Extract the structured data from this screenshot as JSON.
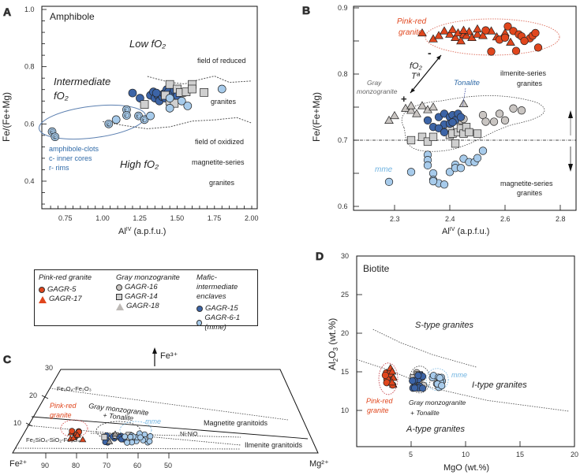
{
  "figure": {
    "colors": {
      "pink_red": "#e0461d",
      "gray": "#c9c5c2",
      "gray_square": "#cfcfcf",
      "dark_blue": "#3c64a6",
      "light_blue": "#a7cbeb",
      "clot_label": "#2f6aa8",
      "mme_label": "#6fb3e0",
      "pink_label": "#e0461d"
    }
  },
  "legend": {
    "groups": [
      {
        "title": "Pink-red granite",
        "items": [
          {
            "label": "GAGR-5",
            "symbol": "circle",
            "color": "#e0461d"
          },
          {
            "label": "GAGR-17",
            "symbol": "triangle",
            "color": "#e0461d"
          }
        ]
      },
      {
        "title": "Gray monzogranite",
        "items": [
          {
            "label": "GAGR-16",
            "symbol": "circle",
            "color": "#c9c5c2"
          },
          {
            "label": "GAGR-14",
            "symbol": "square",
            "color": "#cfcfcf"
          },
          {
            "label": "GAGR-18",
            "symbol": "triangle",
            "color": "#c9c5c2"
          }
        ]
      },
      {
        "title": "Mafic-intermediate",
        "title2": "enclaves",
        "items": [
          {
            "label": "GAGR-15",
            "symbol": "circle",
            "color": "#3c64a6"
          },
          {
            "label": "GAGR-6-1 (mme)",
            "symbol": "circle",
            "color": "#a7cbeb"
          }
        ]
      }
    ]
  },
  "chart_data": [
    {
      "panel": "A",
      "type": "scatter",
      "title": "Amphibole",
      "xlabel": "Alᴵⱽ (a.p.f.u.)",
      "xlabel_base": "Al",
      "xlabel_sup": "IV",
      "xlabel_rest": " (a.p.f.u.)",
      "ylabel": "Fe/(Fe+Mg)",
      "xlim": [
        0.59,
        2.03
      ],
      "ylim": [
        0.3,
        1.01
      ],
      "xticks": [
        0.75,
        1.0,
        1.25,
        1.5,
        1.75,
        2.0
      ],
      "xtick_labels": [
        "0.75",
        "1.00",
        "1.25",
        "1.50",
        "1.75",
        "2.00"
      ],
      "yticks": [
        1.0,
        0.8,
        0.6,
        0.4
      ],
      "ytick_labels": [
        "1.0",
        "0.8",
        "0.6",
        "0.4"
      ],
      "annotations": {
        "low": "Low fO₂",
        "intermediate_1": "Intermediate",
        "intermediate_2": "fO₂",
        "high": "High fO₂",
        "reduced_1": "field of reduced",
        "reduced_2": "granites",
        "oxidized_1": "field of oxidized",
        "oxidized_2": "magnetite-series",
        "oxidized_3": "granites",
        "clots_1": "amphibole-clots",
        "clots_2": "c- inner cores",
        "clots_3": "r- rims"
      },
      "boundary_upper": [
        [
          1.3,
          0.766
        ],
        [
          1.45,
          0.745
        ],
        [
          1.55,
          0.74
        ],
        [
          1.65,
          0.755
        ],
        [
          1.75,
          0.767
        ],
        [
          1.85,
          0.745
        ],
        [
          2.0,
          0.75
        ]
      ],
      "boundary_lower": [
        [
          1.0,
          0.608
        ],
        [
          1.15,
          0.594
        ],
        [
          1.3,
          0.583
        ],
        [
          1.45,
          0.59
        ],
        [
          1.6,
          0.61
        ],
        [
          1.75,
          0.614
        ],
        [
          1.9,
          0.622
        ],
        [
          2.0,
          0.603
        ]
      ],
      "series": [
        {
          "name": "GAGR-15",
          "marker": "circle",
          "color": "#3c64a6",
          "points": [
            [
              1.2,
              0.708
            ],
            [
              1.25,
              0.69
            ],
            [
              1.32,
              0.7
            ],
            [
              1.34,
              0.712
            ],
            [
              1.35,
              0.69
            ],
            [
              1.37,
              0.7
            ],
            [
              1.38,
              0.68
            ],
            [
              1.4,
              0.695
            ],
            [
              1.41,
              0.706
            ],
            [
              1.43,
              0.72
            ],
            [
              1.44,
              0.712
            ],
            [
              1.46,
              0.702
            ],
            [
              1.48,
              0.718
            ],
            [
              1.5,
              0.698
            ],
            [
              1.55,
              0.71
            ],
            [
              1.36,
              0.708
            ],
            [
              1.42,
              0.69
            ]
          ]
        },
        {
          "name": "GAGR-14",
          "marker": "square",
          "color": "#cfcfcf",
          "points": [
            [
              1.28,
              0.668
            ],
            [
              1.45,
              0.738
            ],
            [
              1.5,
              0.722
            ],
            [
              1.52,
              0.71
            ],
            [
              1.56,
              0.712
            ],
            [
              1.6,
              0.738
            ],
            [
              1.6,
              0.722
            ],
            [
              1.68,
              0.71
            ],
            [
              1.45,
              0.68
            ],
            [
              1.48,
              0.672
            ],
            [
              1.42,
              0.7
            ]
          ]
        },
        {
          "name": "GAGR-6-1 (mme)",
          "marker": "circle",
          "color": "#a7cbeb",
          "points": [
            [
              1.45,
              0.655
            ],
            [
              1.53,
              0.68
            ],
            [
              1.57,
              0.663
            ],
            [
              1.8,
              0.722
            ],
            [
              1.45,
              0.69
            ]
          ]
        },
        {
          "name": "amphibole-clots",
          "marker": "circle",
          "color": "#a7cbeb",
          "points": [
            {
              "x": 0.66,
              "y": 0.573,
              "tag": "c"
            },
            {
              "x": 0.68,
              "y": 0.555,
              "tag": "c"
            },
            {
              "x": 1.04,
              "y": 0.6,
              "tag": "c"
            },
            {
              "x": 1.09,
              "y": 0.615,
              "tag": ""
            },
            {
              "x": 1.16,
              "y": 0.65,
              "tag": "r"
            },
            {
              "x": 1.16,
              "y": 0.63,
              "tag": "r"
            },
            {
              "x": 1.24,
              "y": 0.628,
              "tag": "r"
            },
            {
              "x": 1.28,
              "y": 0.615,
              "tag": "r"
            },
            {
              "x": 1.32,
              "y": 0.628,
              "tag": ""
            }
          ]
        }
      ]
    },
    {
      "panel": "B",
      "type": "scatter",
      "xlabel_base": "Al",
      "xlabel_sup": "IV",
      "xlabel_rest": " (a.p.f.u.)",
      "ylabel": "Fe/(Fe+Mg)",
      "ylim": [
        0.6,
        0.9
      ],
      "xticks_labels": [
        "2.3",
        "2.4",
        "2.6",
        "2.8"
      ],
      "yticks": [
        0.9,
        0.8,
        0.7,
        0.6
      ],
      "ytick_labels": [
        "0.9",
        "0.8",
        "0.7",
        "0.6"
      ],
      "threshold_y": 0.7,
      "annotations": {
        "pink_1": "Pink-red",
        "pink_2": "granite",
        "gray_1": "Gray",
        "gray_2": "monzogranite",
        "tonalite": "Tonalite",
        "mme": "mme",
        "fo2": "fO₂",
        "temp": "Tª",
        "minus": "-",
        "plus": "+",
        "ilmenite_1": "ilmenite-series",
        "ilmenite_2": "granites",
        "magnetite_1": "magnetite-series",
        "magnetite_2": "granites"
      },
      "series": [
        {
          "name": "GAGR-17",
          "marker": "triangle",
          "color": "#e0461d",
          "points": [
            [
              2.35,
              0.862
            ],
            [
              2.37,
              0.853
            ],
            [
              2.38,
              0.858
            ],
            [
              2.39,
              0.865
            ],
            [
              2.4,
              0.86
            ],
            [
              2.41,
              0.867
            ],
            [
              2.42,
              0.855
            ],
            [
              2.43,
              0.862
            ],
            [
              2.44,
              0.85
            ],
            [
              2.45,
              0.86
            ],
            [
              2.46,
              0.858
            ],
            [
              2.47,
              0.864
            ],
            [
              2.48,
              0.855
            ],
            [
              2.5,
              0.86
            ],
            [
              2.52,
              0.858
            ],
            [
              2.55,
              0.865
            ],
            [
              2.57,
              0.856
            ],
            [
              2.6,
              0.862
            ],
            [
              2.62,
              0.848
            ],
            [
              2.45,
              0.866
            ],
            [
              2.5,
              0.868
            ]
          ]
        },
        {
          "name": "GAGR-5",
          "marker": "circle",
          "color": "#e0461d",
          "points": [
            [
              2.53,
              0.866
            ],
            [
              2.58,
              0.852
            ],
            [
              2.6,
              0.855
            ],
            [
              2.61,
              0.872
            ],
            [
              2.63,
              0.865
            ],
            [
              2.65,
              0.86
            ],
            [
              2.66,
              0.857
            ],
            [
              2.69,
              0.854
            ],
            [
              2.7,
              0.858
            ],
            [
              2.71,
              0.862
            ],
            [
              2.72,
              0.84
            ],
            [
              2.55,
              0.834
            ],
            [
              2.64,
              0.835
            ],
            [
              2.67,
              0.85
            ]
          ]
        },
        {
          "name": "GAGR-18",
          "marker": "triangle",
          "color": "#c9c5c2",
          "points": [
            [
              2.29,
              0.73
            ],
            [
              2.3,
              0.737
            ],
            [
              2.32,
              0.748
            ],
            [
              2.33,
              0.745
            ],
            [
              2.34,
              0.74
            ],
            [
              2.35,
              0.752
            ],
            [
              2.36,
              0.746
            ],
            [
              2.37,
              0.75
            ],
            [
              2.45,
              0.755
            ],
            [
              2.33,
              0.752
            ]
          ]
        },
        {
          "name": "GAGR-16",
          "marker": "circle",
          "color": "#c9c5c2",
          "points": [
            [
              2.44,
              0.73
            ],
            [
              2.45,
              0.732
            ],
            [
              2.52,
              0.738
            ],
            [
              2.53,
              0.728
            ],
            [
              2.56,
              0.728
            ],
            [
              2.58,
              0.74
            ],
            [
              2.6,
              0.73
            ],
            [
              2.63,
              0.748
            ],
            [
              2.66,
              0.745
            ]
          ]
        },
        {
          "name": "GAGR-14",
          "marker": "square",
          "color": "#cfcfcf",
          "points": [
            [
              2.33,
              0.7
            ],
            [
              2.35,
              0.705
            ],
            [
              2.36,
              0.698
            ],
            [
              2.37,
              0.705
            ],
            [
              2.4,
              0.715
            ],
            [
              2.4,
              0.708
            ],
            [
              2.41,
              0.71
            ],
            [
              2.42,
              0.695
            ],
            [
              2.43,
              0.712
            ],
            [
              2.44,
              0.718
            ],
            [
              2.45,
              0.71
            ],
            [
              2.46,
              0.72
            ],
            [
              2.47,
              0.712
            ],
            [
              2.5,
              0.71
            ]
          ]
        },
        {
          "name": "GAGR-15",
          "marker": "circle",
          "color": "#3c64a6",
          "points": [
            [
              2.36,
              0.73
            ],
            [
              2.37,
              0.72
            ],
            [
              2.38,
              0.735
            ],
            [
              2.39,
              0.74
            ],
            [
              2.39,
              0.724
            ],
            [
              2.4,
              0.735
            ],
            [
              2.41,
              0.738
            ],
            [
              2.42,
              0.73
            ],
            [
              2.38,
              0.718
            ],
            [
              2.4,
              0.725
            ],
            [
              2.43,
              0.74
            ],
            [
              2.44,
              0.735
            ],
            [
              2.41,
              0.727
            ],
            [
              2.39,
              0.712
            ]
          ]
        },
        {
          "name": "GAGR-6-1 (mme)",
          "marker": "circle",
          "color": "#a7cbeb",
          "points": [
            [
              2.29,
              0.637
            ],
            [
              2.33,
              0.652
            ],
            [
              2.36,
              0.678
            ],
            [
              2.36,
              0.67
            ],
            [
              2.36,
              0.662
            ],
            [
              2.37,
              0.65
            ],
            [
              2.37,
              0.64
            ],
            [
              2.38,
              0.635
            ],
            [
              2.39,
              0.633
            ],
            [
              2.4,
              0.652
            ],
            [
              2.42,
              0.663
            ],
            [
              2.42,
              0.658
            ],
            [
              2.44,
              0.658
            ],
            [
              2.45,
              0.672
            ],
            [
              2.47,
              0.667
            ],
            [
              2.49,
              0.667
            ],
            [
              2.5,
              0.673
            ],
            [
              2.52,
              0.684
            ],
            [
              2.37,
              0.638
            ]
          ]
        }
      ]
    },
    {
      "panel": "C",
      "type": "scatter",
      "apex_label": "Fe³⁺",
      "left_label": "Fe²⁺",
      "right_label": "Mg²⁺",
      "bottom_ticks": [
        "90",
        "80",
        "70",
        "60",
        "50"
      ],
      "left_ticks": [
        "30",
        "20",
        "10"
      ],
      "lines": {
        "fe3o4_fe2o3": "Fe₃O₄-Fe₂O₃",
        "fayalite": "Fe₂SiO₄-SiO₂-Fe₃O₄",
        "ni_nio": "Ni-NiO"
      },
      "fields": {
        "magnetite": "Magnetite granitoids",
        "ilmenite": "Ilmenite granitoids"
      },
      "annotations": {
        "pink_1": "Pink-red",
        "pink_2": "granite",
        "gray_1": "Gray monzogranite",
        "gray_2": "+ Tonalite",
        "mme": "mme"
      },
      "clusters": [
        {
          "name": "Pink-red granite",
          "color": "#e0461d",
          "center_mg": 80,
          "fe3": 7
        },
        {
          "name": "Gray monzogranite + Tonalite",
          "color": "#3c64a6",
          "center_mg": 67,
          "fe3": 6
        },
        {
          "name": "mme",
          "color": "#a7cbeb",
          "center_mg": 60,
          "fe3": 6
        }
      ]
    },
    {
      "panel": "D",
      "type": "scatter",
      "title": "Biotite",
      "xlabel": "MgO (wt.%)",
      "ylabel_base": "Al",
      "ylabel_sub1": "2",
      "ylabel_mid": "O",
      "ylabel_sub2": "3",
      "ylabel_rest": " (wt.%)",
      "xlim": [
        0,
        20
      ],
      "ylim": [
        5.5,
        30
      ],
      "xticks": [
        5,
        10,
        15,
        20
      ],
      "xtick_labels": [
        "5",
        "10",
        "15",
        "20"
      ],
      "yticks": [
        30,
        25,
        20,
        15,
        10
      ],
      "ytick_labels": [
        "30",
        "25",
        "20",
        "15",
        "10"
      ],
      "annotations": {
        "s_type": "S-type granites",
        "i_type": "I-type granites",
        "a_type": "A-type granites",
        "pink_1": "Pink-red",
        "pink_2": "granite",
        "gray_1": "Gray monzogranite",
        "gray_2": "+ Tonalite",
        "mme": "mme"
      },
      "boundary_s_i": [
        [
          1.5,
          20.5
        ],
        [
          4,
          18.8
        ],
        [
          7,
          17.2
        ],
        [
          11,
          15.6
        ]
      ],
      "boundary_i_a": [
        [
          0,
          16.6
        ],
        [
          3,
          15.2
        ],
        [
          7,
          12.9
        ],
        [
          12,
          11.3
        ],
        [
          19.5,
          9.9
        ]
      ],
      "clusters": [
        {
          "name": "Pink-red granite",
          "color": "#e0461d",
          "x": 2.9,
          "y": 14.0
        },
        {
          "name": "Gray monzogranite",
          "color": "#c9c5c2",
          "x": 5.7,
          "y": 14.0
        },
        {
          "name": "Tonalite GAGR-15",
          "color": "#3c64a6",
          "x": 5.6,
          "y": 13.7
        },
        {
          "name": "mme",
          "color": "#a7cbeb",
          "x": 7.4,
          "y": 13.8
        }
      ]
    }
  ],
  "panels": {
    "A": {
      "letter": "A"
    },
    "B": {
      "letter": "B"
    },
    "C": {
      "letter": "C"
    },
    "D": {
      "letter": "D"
    }
  }
}
